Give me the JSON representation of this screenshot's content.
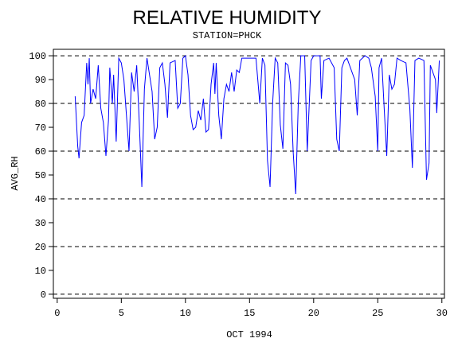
{
  "chart_data": {
    "type": "line",
    "title": "RELATIVE HUMIDITY",
    "subtitle": "STATION=PHCK",
    "x_label": "OCT 1994",
    "y_label": "AVG_RH",
    "xlim": [
      -0.3,
      30.2
    ],
    "ylim": [
      -1.7,
      102.7
    ],
    "xticks": [
      0,
      5,
      10,
      15,
      20,
      25,
      30
    ],
    "yticks": [
      0,
      10,
      20,
      30,
      40,
      50,
      60,
      70,
      80,
      90,
      100
    ],
    "reference_lines": [
      0,
      20,
      40,
      60,
      80,
      100
    ],
    "series": [
      {
        "color": "#0000ff",
        "x": [
          1.4,
          1.6,
          1.7,
          1.9,
          2.1,
          2.3,
          2.4,
          2.5,
          2.6,
          2.8,
          3.0,
          3.2,
          3.4,
          3.6,
          3.8,
          4.0,
          4.1,
          4.3,
          4.4,
          4.6,
          4.8,
          5.0,
          5.2,
          5.4,
          5.6,
          5.8,
          6.0,
          6.2,
          6.4,
          6.6,
          6.8,
          7.0,
          7.4,
          7.6,
          7.8,
          8.0,
          8.2,
          8.4,
          8.6,
          8.8,
          9.2,
          9.4,
          9.6,
          9.8,
          10.0,
          10.2,
          10.4,
          10.6,
          10.8,
          11.0,
          11.2,
          11.4,
          11.6,
          11.8,
          12.0,
          12.2,
          12.3,
          12.4,
          12.6,
          12.8,
          13.0,
          13.2,
          13.4,
          13.6,
          13.8,
          14.0,
          14.2,
          14.4,
          15.5,
          15.8,
          16.0,
          16.2,
          16.4,
          16.6,
          16.8,
          17.0,
          17.2,
          17.4,
          17.6,
          17.8,
          18.0,
          18.2,
          18.4,
          18.6,
          18.8,
          19.0,
          19.3,
          19.5,
          19.8,
          20.0,
          20.5,
          20.6,
          20.8,
          21.2,
          21.6,
          21.8,
          22.0,
          22.2,
          22.4,
          22.6,
          23.2,
          23.4,
          23.6,
          24.0,
          24.3,
          24.5,
          24.8,
          25.0,
          25.1,
          25.3,
          25.5,
          25.7,
          25.9,
          26.1,
          26.3,
          26.5,
          26.8,
          27.2,
          27.5,
          27.7,
          27.9,
          28.2,
          28.6,
          28.8,
          29.0,
          29.1,
          29.5,
          29.6,
          29.8
        ],
        "values": [
          83,
          62,
          57,
          72,
          75,
          97,
          88,
          99,
          80,
          86,
          82,
          96,
          78,
          72,
          58,
          73,
          95,
          80,
          92,
          64,
          99,
          97,
          90,
          75,
          60,
          93,
          85,
          96,
          72,
          45,
          86,
          99,
          85,
          65,
          70,
          95,
          97,
          88,
          74,
          97,
          98,
          78,
          80,
          99,
          100,
          92,
          75,
          69,
          70,
          77,
          73,
          82,
          68,
          69,
          88,
          97,
          84,
          97,
          75,
          65,
          82,
          88,
          85,
          93,
          85,
          94,
          93,
          99,
          99,
          80,
          99,
          96,
          56,
          45,
          80,
          99,
          97,
          71,
          61,
          97,
          96,
          88,
          60,
          42,
          80,
          100,
          100,
          60,
          98,
          100,
          100,
          82,
          98,
          99,
          95,
          65,
          60,
          95,
          98,
          99,
          90,
          75,
          98,
          100,
          99,
          95,
          83,
          60,
          95,
          99,
          78,
          58,
          92,
          86,
          88,
          99,
          98,
          97,
          78,
          53,
          98,
          99,
          98,
          48,
          55,
          96,
          90,
          76,
          98
        ]
      }
    ]
  }
}
